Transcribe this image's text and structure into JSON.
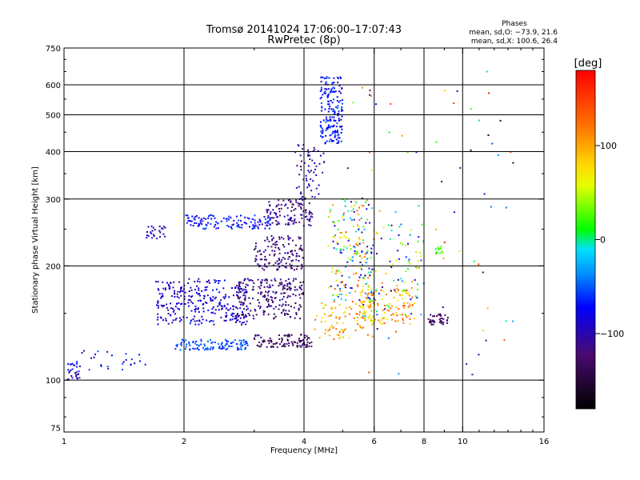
{
  "chart_data": {
    "type": "scatter",
    "title": "Tromsø 20141024 17:06:00–17:07:43",
    "subtitle": "RwPretec (8p)",
    "phases": {
      "heading": "Phases",
      "line1": "mean, sd,O: −73.9, 21.6",
      "line2": "mean, sd,X: 100.6, 26.4"
    },
    "xlabel": "Frequency [MHz]",
    "ylabel": "Stationary phase Virtual Height [km]",
    "x_scale": "log",
    "y_scale": "log",
    "xlim": [
      1,
      16
    ],
    "ylim": [
      73,
      750
    ],
    "x_ticks": [
      1,
      2,
      4,
      6,
      8,
      10,
      16
    ],
    "x_tick_labels": [
      "1",
      "2",
      "4",
      "6",
      "8",
      "10",
      "16"
    ],
    "y_ticks": [
      75,
      100,
      200,
      300,
      400,
      500,
      600,
      750
    ],
    "y_tick_labels": [
      "75",
      "100",
      "200",
      "300",
      "400",
      "500",
      "600",
      "750"
    ],
    "x_gridlines": [
      2,
      4,
      6,
      8,
      10
    ],
    "y_gridlines": [
      100,
      200,
      300,
      400,
      500,
      600
    ],
    "grid": true,
    "colorbar": {
      "label": "[deg]",
      "range": [
        -180,
        180
      ],
      "ticks": [
        100,
        0,
        -100
      ],
      "tick_labels": [
        "100",
        "0",
        "−100"
      ]
    },
    "point_color_meaning": "phase in degrees",
    "clusters": [
      {
        "f": [
          1.02,
          1.1
        ],
        "h": [
          100,
          112
        ],
        "phase": [
          -110,
          -60
        ],
        "n": 30
      },
      {
        "f": [
          1.1,
          1.6
        ],
        "h": [
          105,
          120
        ],
        "phase": [
          -100,
          -50
        ],
        "n": 25
      },
      {
        "f": [
          1.6,
          1.8
        ],
        "h": [
          235,
          255
        ],
        "phase": [
          -110,
          -80
        ],
        "n": 25
      },
      {
        "f": [
          1.7,
          2.0
        ],
        "h": [
          140,
          182
        ],
        "phase": [
          -110,
          -70
        ],
        "n": 90
      },
      {
        "f": [
          1.9,
          2.9
        ],
        "h": [
          120,
          128
        ],
        "phase": [
          -70,
          -40
        ],
        "n": 110
      },
      {
        "f": [
          2.0,
          2.9
        ],
        "h": [
          140,
          185
        ],
        "phase": [
          -110,
          -60
        ],
        "n": 200
      },
      {
        "f": [
          2.0,
          3.3
        ],
        "h": [
          250,
          272
        ],
        "phase": [
          -90,
          -50
        ],
        "n": 120
      },
      {
        "f": [
          2.7,
          4.0
        ],
        "h": [
          145,
          185
        ],
        "phase": [
          -150,
          -90
        ],
        "n": 220
      },
      {
        "f": [
          3.0,
          4.2
        ],
        "h": [
          122,
          132
        ],
        "phase": [
          -150,
          -110
        ],
        "n": 100
      },
      {
        "f": [
          3.0,
          4.0
        ],
        "h": [
          195,
          240
        ],
        "phase": [
          -140,
          -90
        ],
        "n": 130
      },
      {
        "f": [
          3.2,
          4.2
        ],
        "h": [
          255,
          300
        ],
        "phase": [
          -130,
          -90
        ],
        "n": 110
      },
      {
        "f": [
          3.8,
          4.5
        ],
        "h": [
          300,
          420
        ],
        "phase": [
          -120,
          -80
        ],
        "n": 60
      },
      {
        "f": [
          4.4,
          5.0
        ],
        "h": [
          420,
          630
        ],
        "phase": [
          -90,
          -50
        ],
        "n": 180
      },
      {
        "f": [
          4.2,
          6.0
        ],
        "h": [
          128,
          160
        ],
        "phase": [
          60,
          140
        ],
        "n": 90
      },
      {
        "f": [
          4.6,
          6.0
        ],
        "h": [
          160,
          300
        ],
        "phase": [
          -130,
          140
        ],
        "n": 180
      },
      {
        "f": [
          5.5,
          7.6
        ],
        "h": [
          140,
          175
        ],
        "phase": [
          60,
          150
        ],
        "n": 120
      },
      {
        "f": [
          5.5,
          8.0
        ],
        "h": [
          145,
          260
        ],
        "phase": [
          -120,
          120
        ],
        "n": 100
      },
      {
        "f": [
          8.2,
          9.2
        ],
        "h": [
          140,
          150
        ],
        "phase": [
          -140,
          -110
        ],
        "n": 40
      },
      {
        "f": [
          8.5,
          9.0
        ],
        "h": [
          215,
          225
        ],
        "phase": [
          10,
          40
        ],
        "n": 12
      },
      {
        "f": [
          5.0,
          14.5
        ],
        "h": [
          100,
          650
        ],
        "phase": [
          -160,
          170
        ],
        "n": 70
      }
    ]
  }
}
